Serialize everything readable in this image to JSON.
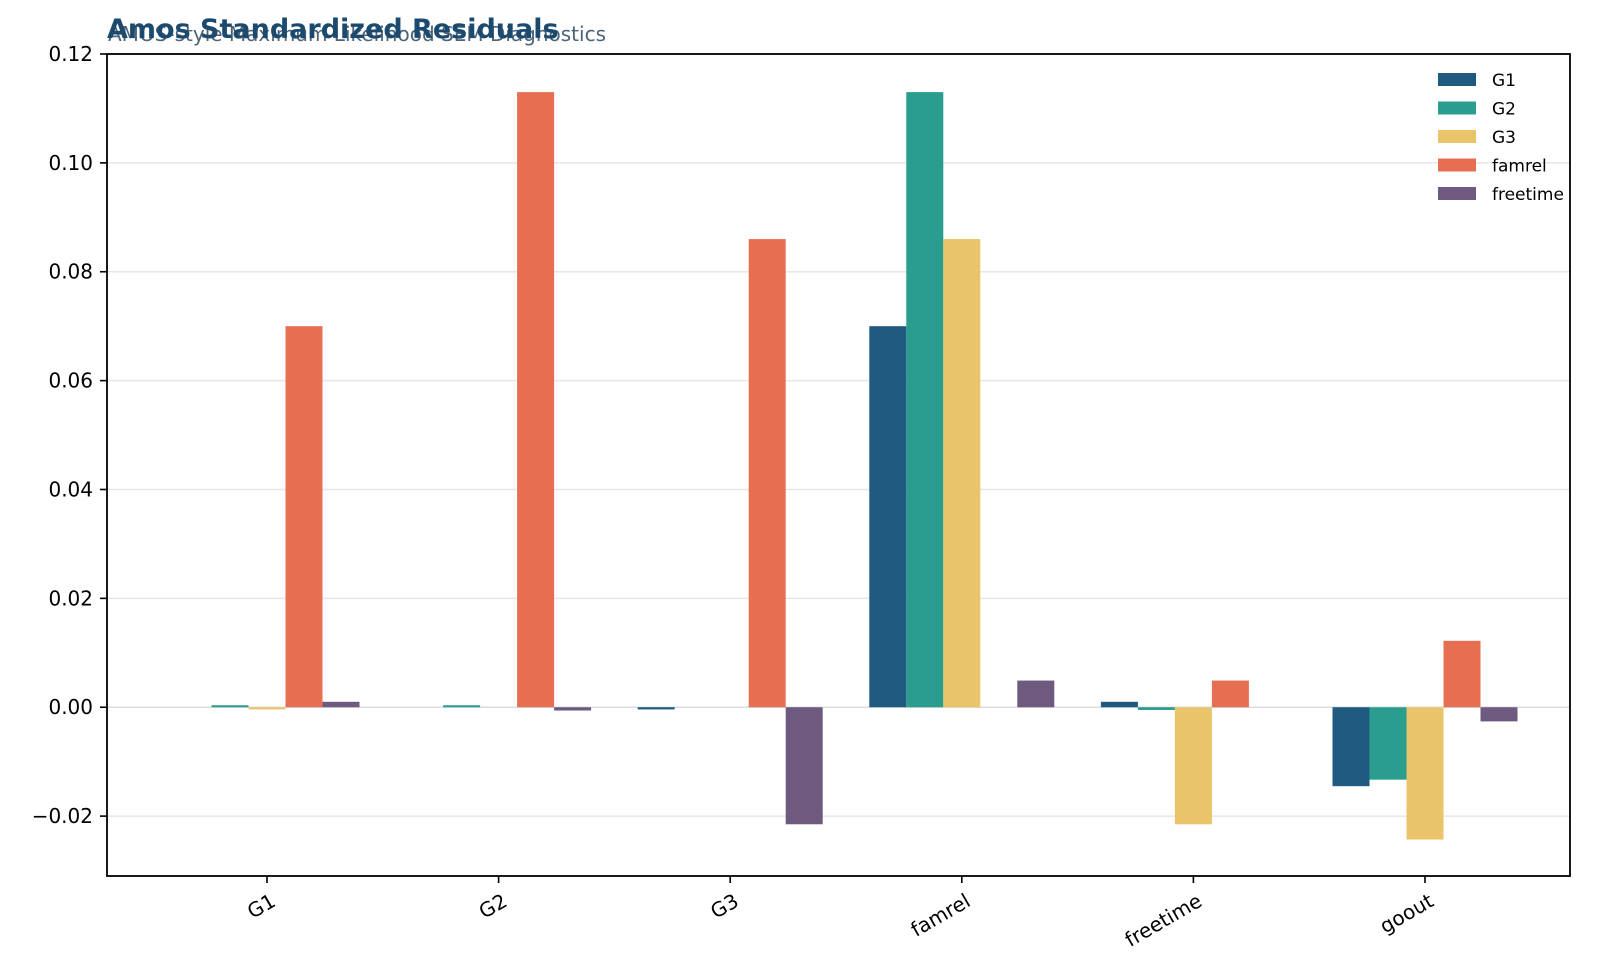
{
  "chart_data": {
    "type": "bar",
    "title": "Amos Standardized Residuals",
    "subtitle": "AMOS-style Maximum Likelihood SEM Diagnostics",
    "xlabel": "",
    "ylabel": "",
    "categories": [
      "G1",
      "G2",
      "G3",
      "famrel",
      "freetime",
      "goout"
    ],
    "series": [
      {
        "name": "G1",
        "color": "#1f5a80",
        "values": [
          0.0,
          0.0,
          -0.0004,
          0.07,
          0.001,
          -0.0145
        ]
      },
      {
        "name": "G2",
        "color": "#2a9d8f",
        "values": [
          0.0002,
          0.0001,
          0.0,
          0.113,
          -0.0005,
          -0.0133
        ]
      },
      {
        "name": "G3",
        "color": "#e9c46a",
        "values": [
          -0.0004,
          0.0,
          0.0,
          0.086,
          -0.0215,
          -0.0243
        ]
      },
      {
        "name": "famrel",
        "color": "#e76f51",
        "values": [
          0.07,
          0.113,
          0.086,
          0.0,
          0.0049,
          0.0122
        ]
      },
      {
        "name": "freetime",
        "color": "#6d5a7e",
        "values": [
          0.001,
          -0.0006,
          -0.0215,
          0.0049,
          0.0,
          -0.0026
        ]
      }
    ],
    "ylim": [
      -0.031,
      0.12
    ],
    "yticks": [
      -0.02,
      0.0,
      0.02,
      0.04,
      0.06,
      0.08,
      0.1,
      0.12
    ],
    "ytick_labels": [
      "−0.02",
      "0.00",
      "0.02",
      "0.04",
      "0.06",
      "0.08",
      "0.10",
      "0.12"
    ],
    "grid": "y",
    "legend": "top-right",
    "xtick_rotation": "30 degrees"
  }
}
